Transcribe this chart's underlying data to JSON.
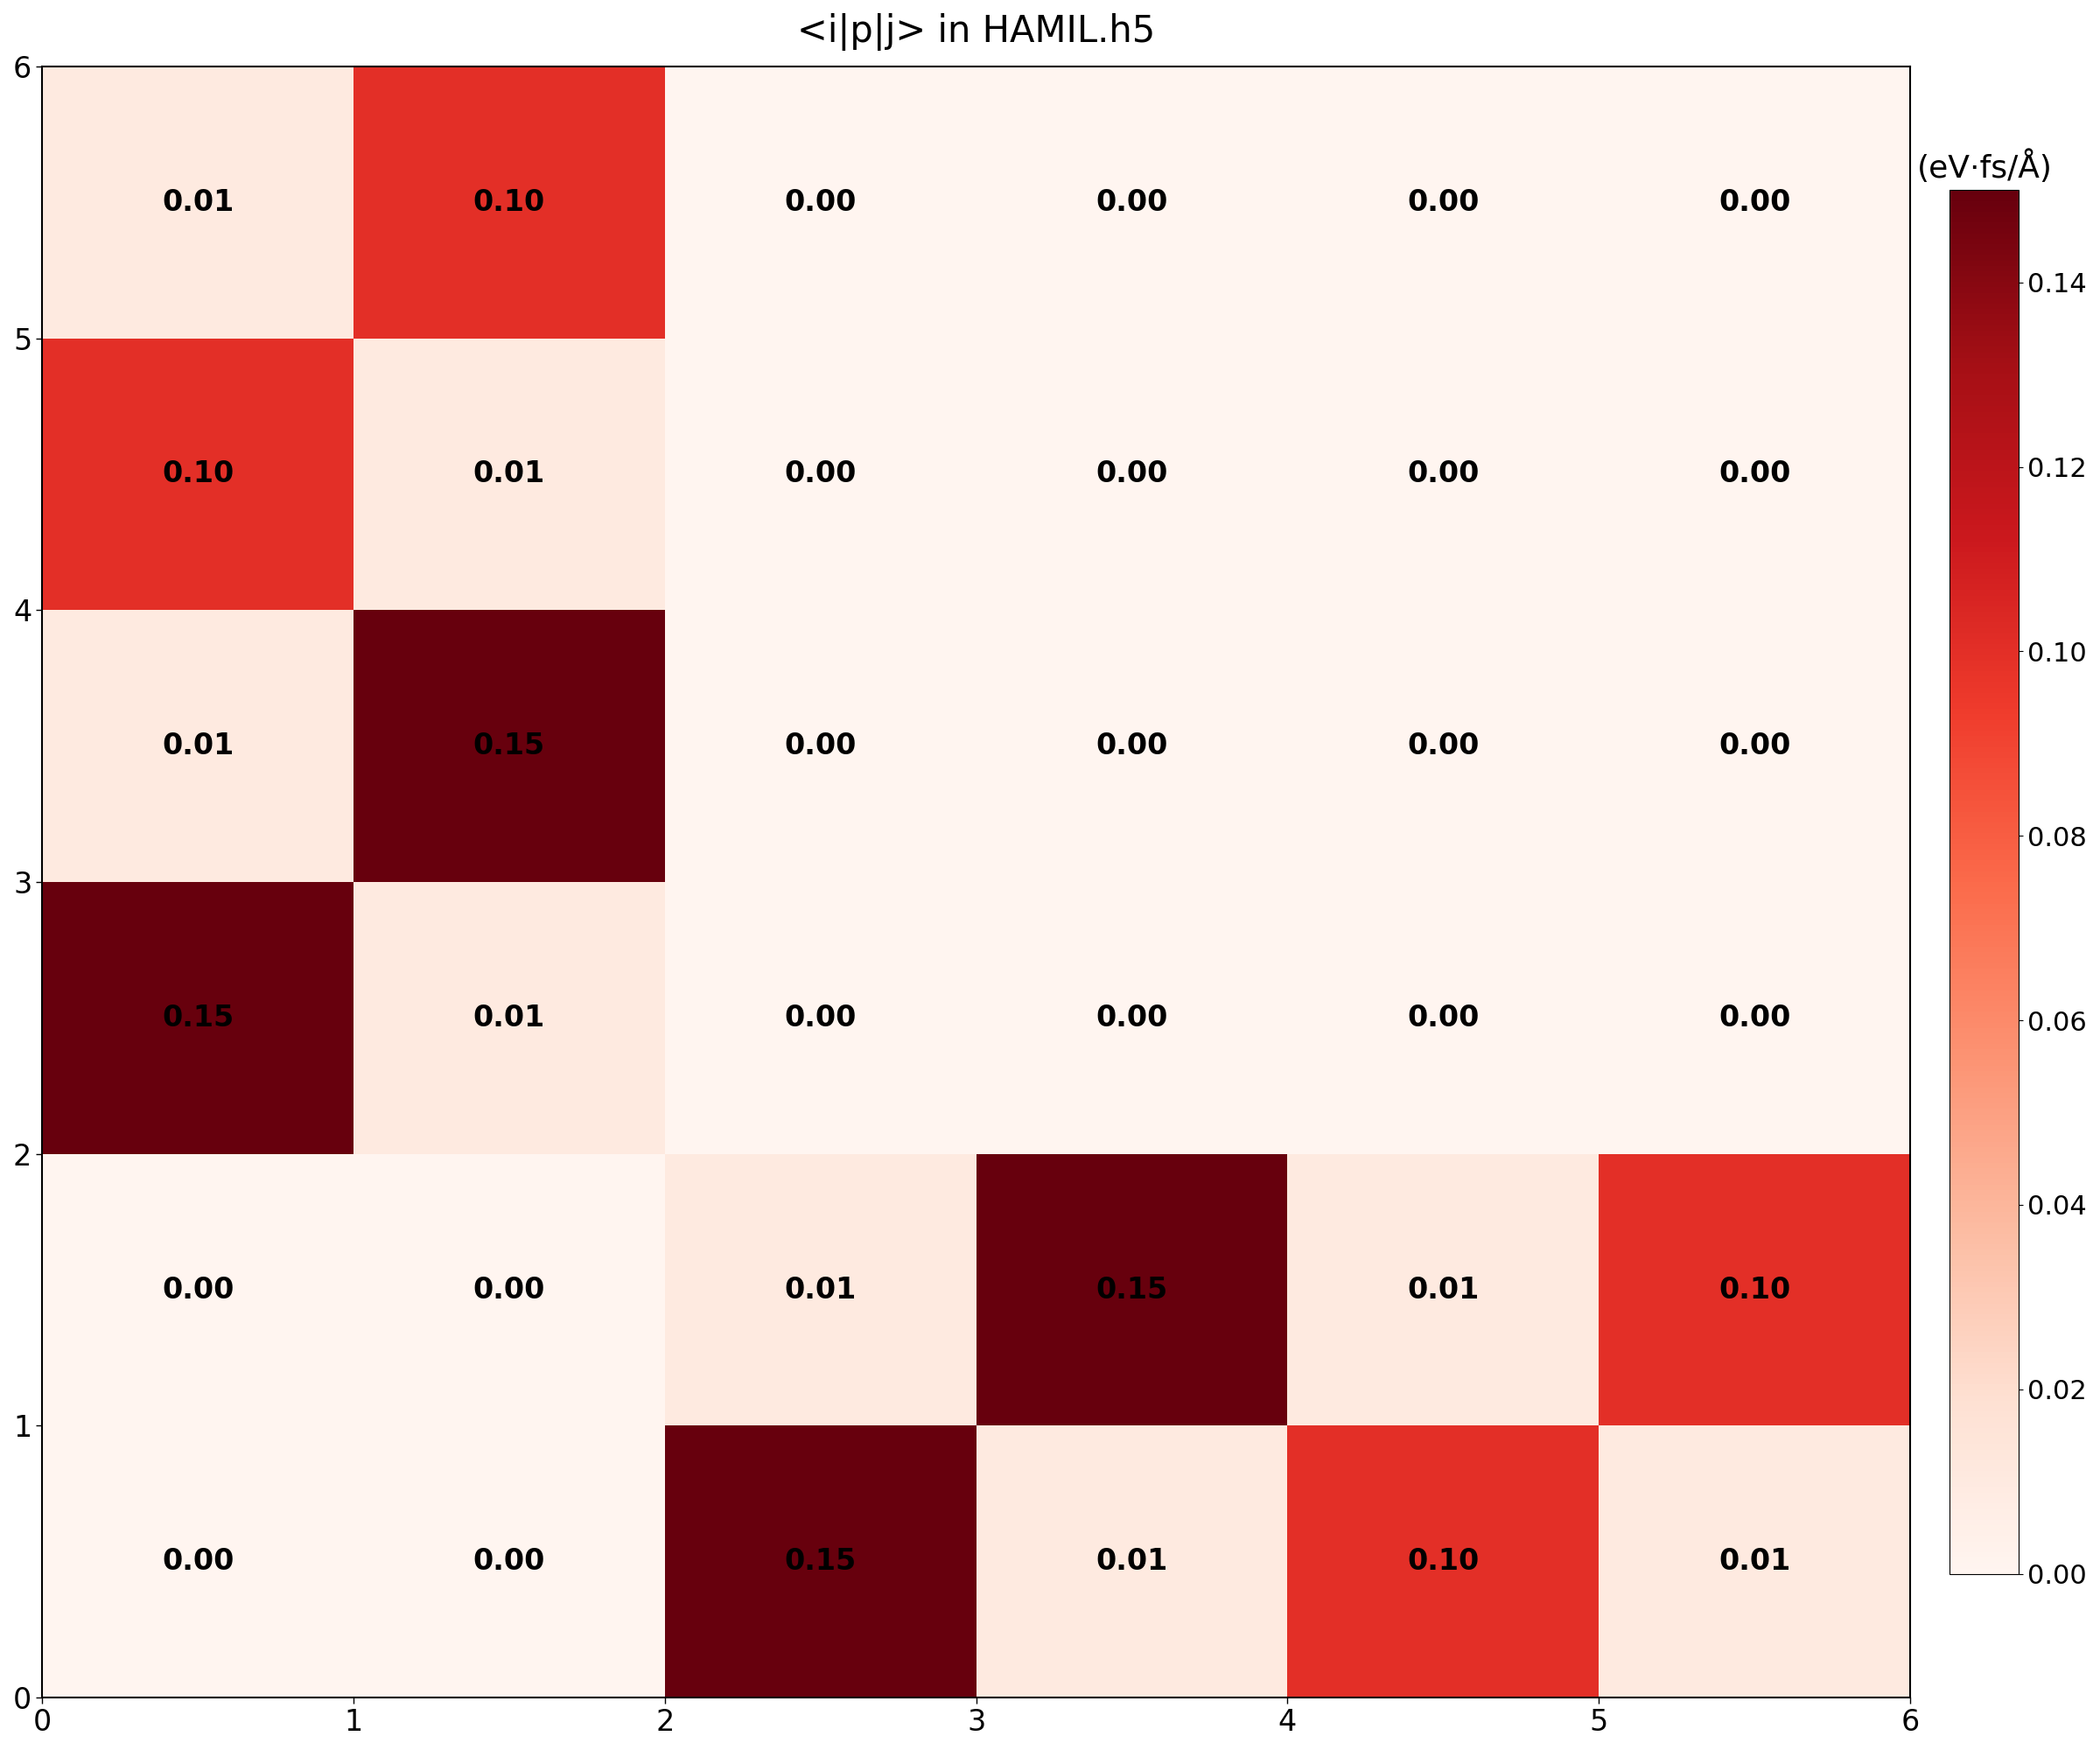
{
  "title": "<i|p|j> in HAMIL.h5",
  "colorbar_label": "(eV·fs/Å)",
  "matrix": [
    [
      0.0,
      0.0,
      0.15,
      0.01,
      0.1,
      0.01
    ],
    [
      0.0,
      0.0,
      0.01,
      0.15,
      0.01,
      0.1
    ],
    [
      0.15,
      0.01,
      0.0,
      0.0,
      0.0,
      0.0
    ],
    [
      0.01,
      0.15,
      0.0,
      0.0,
      0.0,
      0.0
    ],
    [
      0.1,
      0.01,
      0.0,
      0.0,
      0.0,
      0.0
    ],
    [
      0.01,
      0.1,
      0.0,
      0.0,
      0.0,
      0.0
    ]
  ],
  "vmin": 0.0,
  "vmax": 0.15,
  "cmap": "Reds",
  "xticks": [
    0,
    1,
    2,
    3,
    4,
    5,
    6
  ],
  "yticks": [
    0,
    1,
    2,
    3,
    4,
    5,
    6
  ],
  "title_fontsize": 30,
  "tick_fontsize": 24,
  "annotation_fontsize": 24,
  "colorbar_tick_fontsize": 22,
  "colorbar_label_fontsize": 26,
  "cbar_ticks": [
    0.0,
    0.02,
    0.04,
    0.06,
    0.08,
    0.1,
    0.12,
    0.14
  ],
  "figsize": [
    24,
    20
  ]
}
